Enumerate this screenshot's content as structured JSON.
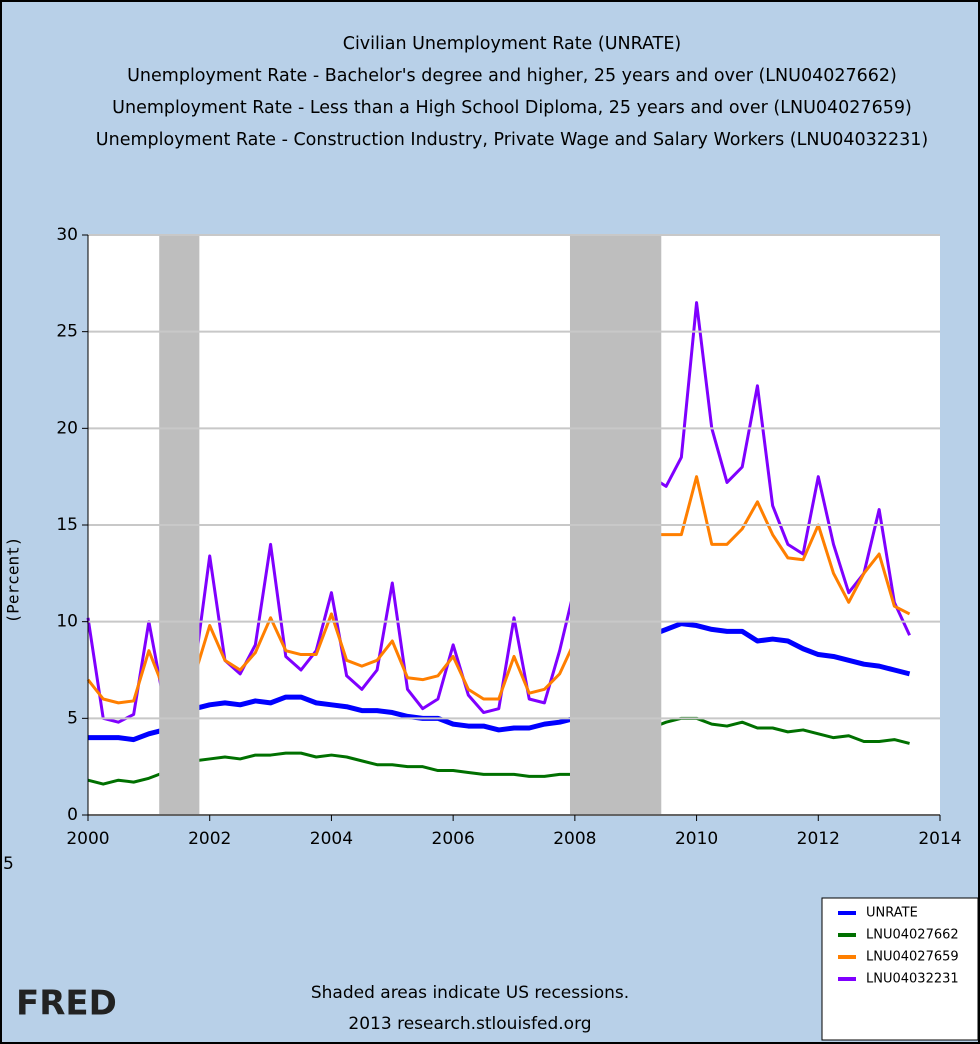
{
  "chart_data": {
    "type": "line",
    "title_lines": [
      "Civilian Unemployment Rate (UNRATE)",
      "Unemployment Rate - Bachelor's degree and higher, 25 years and over (LNU04027662)",
      "Unemployment Rate - Less than a High School Diploma, 25 years and over (LNU04027659)",
      "Unemployment Rate - Construction Industry, Private Wage and Salary Workers (LNU04032231)"
    ],
    "y_label": "(Percent)",
    "x": [
      2000,
      2000.25,
      2000.5,
      2000.75,
      2001,
      2001.25,
      2001.5,
      2001.75,
      2002,
      2002.25,
      2002.5,
      2002.75,
      2003,
      2003.25,
      2003.5,
      2003.75,
      2004,
      2004.25,
      2004.5,
      2004.75,
      2005,
      2005.25,
      2005.5,
      2005.75,
      2006,
      2006.25,
      2006.5,
      2006.75,
      2007,
      2007.25,
      2007.5,
      2007.75,
      2008,
      2008.25,
      2008.5,
      2008.75,
      2009,
      2009.25,
      2009.5,
      2009.75,
      2010,
      2010.25,
      2010.5,
      2010.75,
      2011,
      2011.25,
      2011.5,
      2011.75,
      2012,
      2012.25,
      2012.5,
      2012.75,
      2013,
      2013.25,
      2013.5
    ],
    "series": [
      {
        "name": "UNRATE",
        "color": "#0000ff",
        "values": [
          4.0,
          4.0,
          4.0,
          3.9,
          4.2,
          4.4,
          4.8,
          5.5,
          5.7,
          5.8,
          5.7,
          5.9,
          5.8,
          6.1,
          6.1,
          5.8,
          5.7,
          5.6,
          5.4,
          5.4,
          5.3,
          5.1,
          5.0,
          5.0,
          4.7,
          4.6,
          4.6,
          4.4,
          4.5,
          4.5,
          4.7,
          4.8,
          5.0,
          5.3,
          6.0,
          6.9,
          8.3,
          9.3,
          9.6,
          9.9,
          9.8,
          9.6,
          9.5,
          9.5,
          9.0,
          9.1,
          9.0,
          8.6,
          8.3,
          8.2,
          8.0,
          7.8,
          7.7,
          7.5,
          7.3
        ]
      },
      {
        "name": "LNU04027662",
        "color": "#007000",
        "values": [
          1.8,
          1.6,
          1.8,
          1.7,
          1.9,
          2.2,
          2.5,
          2.8,
          2.9,
          3.0,
          2.9,
          3.1,
          3.1,
          3.2,
          3.2,
          3.0,
          3.1,
          3.0,
          2.8,
          2.6,
          2.6,
          2.5,
          2.5,
          2.3,
          2.3,
          2.2,
          2.1,
          2.1,
          2.1,
          2.0,
          2.0,
          2.1,
          2.1,
          2.3,
          2.7,
          3.1,
          3.8,
          4.5,
          4.8,
          5.0,
          5.0,
          4.7,
          4.6,
          4.8,
          4.5,
          4.5,
          4.3,
          4.4,
          4.2,
          4.0,
          4.1,
          3.8,
          3.8,
          3.9,
          3.7
        ]
      },
      {
        "name": "LNU04027659",
        "color": "#ff7f00",
        "values": [
          7.0,
          6.0,
          5.8,
          5.9,
          8.5,
          6.5,
          6.5,
          7.2,
          9.8,
          8.0,
          7.5,
          8.4,
          10.2,
          8.5,
          8.3,
          8.3,
          10.4,
          8.0,
          7.7,
          8.0,
          9.0,
          7.1,
          7.0,
          7.2,
          8.2,
          6.5,
          6.0,
          6.0,
          8.2,
          6.3,
          6.5,
          7.3,
          9.0,
          8.3,
          8.5,
          11.0,
          15.0,
          14.5,
          14.5,
          14.5,
          17.5,
          14.0,
          14.0,
          14.8,
          16.2,
          14.5,
          13.3,
          13.2,
          15.0,
          12.5,
          11.0,
          12.5,
          13.5,
          10.8,
          10.4
        ]
      },
      {
        "name": "LNU04032231",
        "color": "#7f00ff",
        "values": [
          10.2,
          5.0,
          4.8,
          5.2,
          10.0,
          5.8,
          5.6,
          7.5,
          13.4,
          8.0,
          7.3,
          8.8,
          14.0,
          8.2,
          7.5,
          8.5,
          11.5,
          7.2,
          6.5,
          7.5,
          12.0,
          6.5,
          5.5,
          6.0,
          8.8,
          6.2,
          5.3,
          5.5,
          10.2,
          6.0,
          5.8,
          8.5,
          11.8,
          8.5,
          8.5,
          12.5,
          21.0,
          17.5,
          17.0,
          18.5,
          26.5,
          20.0,
          17.2,
          18.0,
          22.2,
          16.0,
          14.0,
          13.5,
          17.5,
          14.0,
          11.5,
          12.5,
          15.8,
          11.0,
          9.3
        ]
      }
    ],
    "recessions": [
      [
        2001.17,
        2001.83
      ],
      [
        2007.92,
        2009.42
      ]
    ],
    "xlim": [
      2000,
      2014
    ],
    "xticks": [
      2000,
      2002,
      2004,
      2006,
      2008,
      2010,
      2012,
      2014
    ],
    "ylim": [
      0,
      30
    ],
    "yticks": [
      0,
      5,
      10,
      15,
      20,
      25,
      30
    ],
    "grid": true,
    "footnote_lines": [
      "Shaded areas indicate US recessions.",
      "2013 research.stlouisfed.org"
    ],
    "logo": "FRED",
    "edge_text": "5"
  }
}
